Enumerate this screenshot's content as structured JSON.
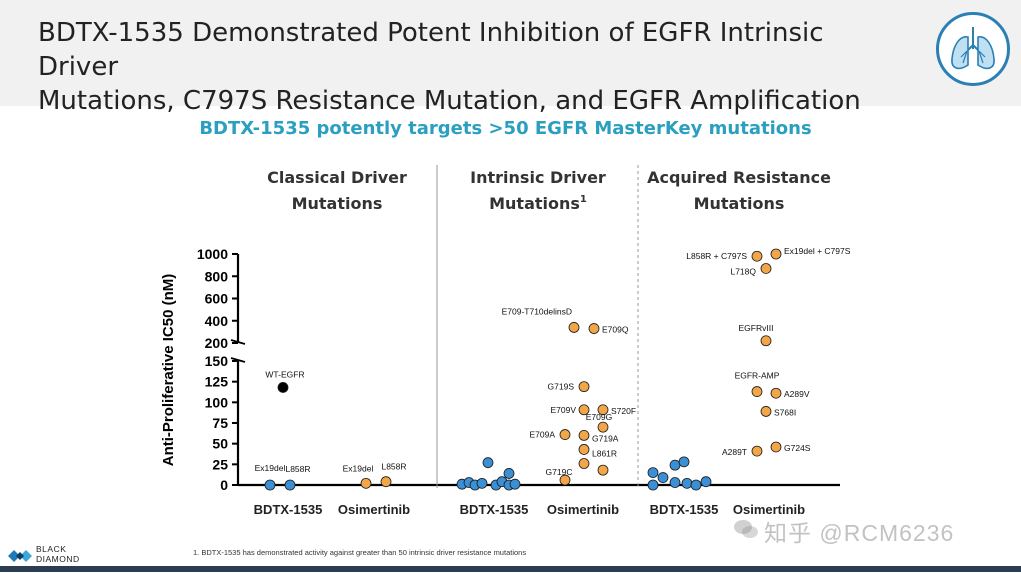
{
  "header": {
    "title_line1": "BDTX-1535 Demonstrated Potent Inhibition of EGFR Intrinsic Driver",
    "title_line2": "Mutations, C797S Resistance Mutation, and EGFR Amplification",
    "badge_icon": "lungs-icon"
  },
  "subtitle": "BDTX-1535 potently targets >50 EGFR MasterKey mutations",
  "colors": {
    "bdtx": "#3b8fd4",
    "osimertinib": "#f2a648",
    "wt": "#000000",
    "subtitle": "#2a9fc0",
    "divider": "#999999"
  },
  "chart_data": {
    "type": "scatter",
    "ylabel": "Anti-Proliferative IC50 (nM)",
    "y_axis": {
      "broken": true,
      "lower_range": [
        0,
        150
      ],
      "lower_ticks": [
        0,
        25,
        50,
        75,
        100,
        125,
        150
      ],
      "upper_range": [
        200,
        1000
      ],
      "upper_ticks": [
        200,
        400,
        600,
        800,
        1000
      ]
    },
    "panels": [
      {
        "title_line1": "Classical Driver",
        "title_line2": "Mutations",
        "superscript": "",
        "groups": [
          {
            "label": "BDTX-1535",
            "drug": "bdtx",
            "points": [
              {
                "label": "Ex19del",
                "y": 0
              },
              {
                "label": "L858R",
                "y": 0
              },
              {
                "label": "WT-EGFR",
                "y": 118,
                "wt": true
              }
            ]
          },
          {
            "label": "Osimertinib",
            "drug": "osimertinib",
            "points": [
              {
                "label": "Ex19del",
                "y": 2
              },
              {
                "label": "L858R",
                "y": 4
              }
            ]
          }
        ]
      },
      {
        "title_line1": "Intrinsic Driver",
        "title_line2": "Mutations",
        "superscript": "1",
        "groups": [
          {
            "label": "BDTX-1535",
            "drug": "bdtx",
            "points": [
              {
                "label": "",
                "y": 1
              },
              {
                "label": "",
                "y": 3
              },
              {
                "label": "",
                "y": 0
              },
              {
                "label": "",
                "y": 2
              },
              {
                "label": "",
                "y": 27
              },
              {
                "label": "",
                "y": 0
              },
              {
                "label": "",
                "y": 4
              },
              {
                "label": "",
                "y": 0
              },
              {
                "label": "",
                "y": 14
              },
              {
                "label": "",
                "y": 1
              }
            ]
          },
          {
            "label": "Osimertinib",
            "drug": "osimertinib",
            "points": [
              {
                "label": "E709-T710delinsD",
                "y": 340
              },
              {
                "label": "E709Q",
                "y": 330
              },
              {
                "label": "G719S",
                "y": 119
              },
              {
                "label": "E709V",
                "y": 91
              },
              {
                "label": "S720F",
                "y": 91
              },
              {
                "label": "E709G",
                "y": 70
              },
              {
                "label": "E709A",
                "y": 61
              },
              {
                "label": "G719A",
                "y": 43
              },
              {
                "label": "L861R",
                "y": 26
              },
              {
                "label": "G719C",
                "y": 6
              },
              {
                "label": "",
                "y": 60
              },
              {
                "label": "",
                "y": 18
              }
            ]
          }
        ]
      },
      {
        "title_line1": "Acquired Resistance",
        "title_line2": "Mutations",
        "superscript": "",
        "groups": [
          {
            "label": "BDTX-1535",
            "drug": "bdtx",
            "points": [
              {
                "label": "",
                "y": 15
              },
              {
                "label": "",
                "y": 9
              },
              {
                "label": "",
                "y": 24
              },
              {
                "label": "",
                "y": 28
              },
              {
                "label": "",
                "y": 3
              },
              {
                "label": "",
                "y": 2
              },
              {
                "label": "",
                "y": 0
              },
              {
                "label": "",
                "y": 4
              },
              {
                "label": "",
                "y": 0
              }
            ]
          },
          {
            "label": "Osimertinib",
            "drug": "osimertinib",
            "points": [
              {
                "label": "L858R + C797S",
                "y": 980
              },
              {
                "label": "Ex19del + C797S",
                "y": 1000
              },
              {
                "label": "L718Q",
                "y": 870
              },
              {
                "label": "EGFRvIII",
                "y": 220
              },
              {
                "label": "EGFR-AMP",
                "y": 113
              },
              {
                "label": "A289V",
                "y": 111
              },
              {
                "label": "S768I",
                "y": 89
              },
              {
                "label": "A289T",
                "y": 41
              },
              {
                "label": "G724S",
                "y": 46
              }
            ]
          }
        ]
      }
    ]
  },
  "footnote": "1. BDTX-1535 has demonstrated activity against greater than 50 intrinsic driver resistance mutations",
  "logo": {
    "line1": "BLACK",
    "line2": "DIAMOND"
  },
  "watermark": "知乎 @RCM6236"
}
